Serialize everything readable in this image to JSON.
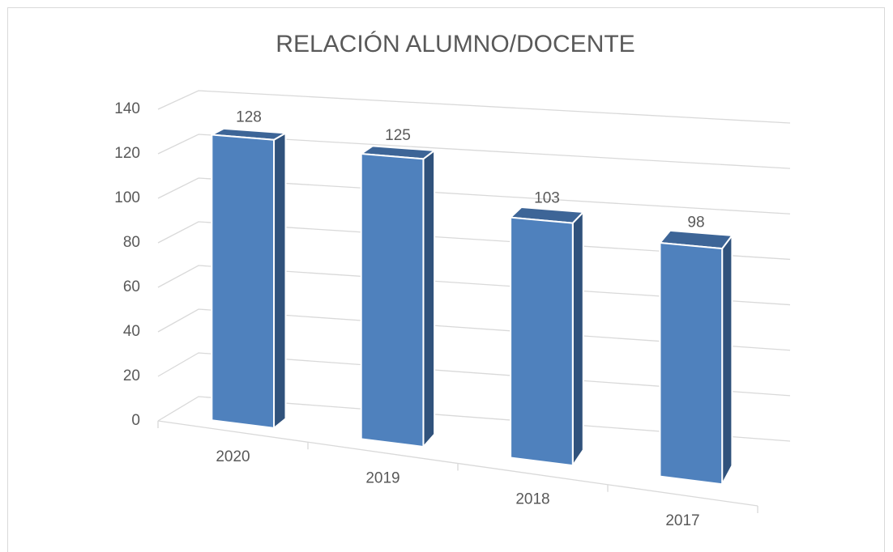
{
  "chart_data": {
    "type": "bar3d",
    "title": "RELACIÓN ALUMNO/DOCENTE",
    "categories": [
      "2020",
      "2019",
      "2018",
      "2017"
    ],
    "values": [
      128,
      125,
      103,
      98
    ],
    "color": "#4f81bd",
    "ylim": [
      0,
      140
    ],
    "yticks": [
      0,
      20,
      40,
      60,
      80,
      100,
      120,
      140
    ],
    "grid": true
  }
}
